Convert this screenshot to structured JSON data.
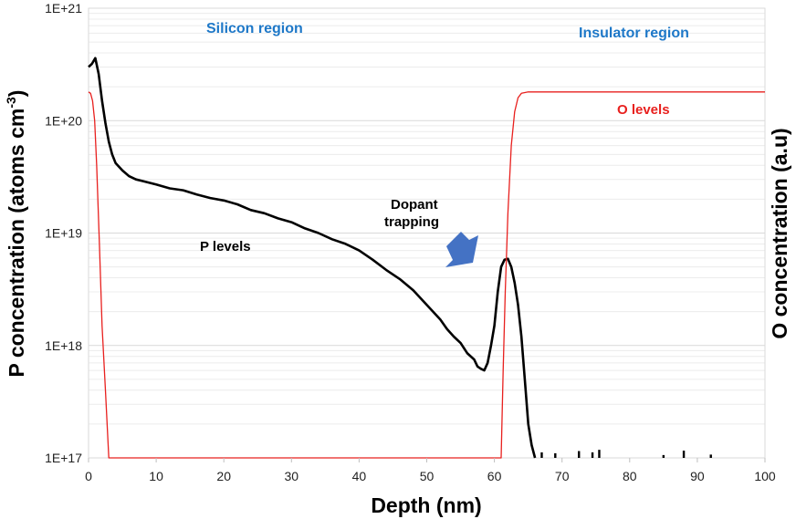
{
  "chart_data": {
    "type": "line",
    "xlabel": "Depth (nm)",
    "ylabel_left": "P concentration (atoms cm-3)",
    "ylabel_left_main": "P concentration (atoms cm",
    "ylabel_left_sup": "-3",
    "ylabel_left_tail": ")",
    "ylabel_right": "O concentration (a.u)",
    "xlim": [
      0,
      100
    ],
    "ylim": [
      1e+17,
      1e+21
    ],
    "yscale": "log",
    "grid": true,
    "x_ticks": [
      0,
      10,
      20,
      30,
      40,
      50,
      60,
      70,
      80,
      90,
      100
    ],
    "x_tick_labels": [
      "0",
      "10",
      "20",
      "30",
      "40",
      "50",
      "60",
      "70",
      "80",
      "90",
      "100"
    ],
    "y_ticks": [
      1e+17,
      1e+18,
      1e+19,
      1e+20,
      1e+21
    ],
    "y_tick_labels": [
      "1E+17",
      "1E+18",
      "1E+19",
      "1E+20",
      "1E+21"
    ],
    "colors": {
      "p_series": "#000000",
      "o_series": "#e8201e",
      "region_label": "#1e78c8",
      "arrow": "#4472c4",
      "grid": "#d9d9d9"
    },
    "series": [
      {
        "name": "P levels",
        "color": "#000000",
        "x": [
          0,
          0.5,
          1,
          1.5,
          2,
          2.5,
          3,
          3.5,
          4,
          5,
          6,
          7,
          8,
          10,
          12,
          14,
          16,
          18,
          20,
          22,
          24,
          26,
          28,
          30,
          32,
          34,
          36,
          38,
          40,
          42,
          44,
          46,
          48,
          50,
          52,
          53,
          54,
          55,
          56,
          57,
          57.5,
          58,
          58.5,
          59,
          59.5,
          60,
          60.5,
          61,
          61.5,
          62,
          62.5,
          63,
          63.5,
          64,
          64.5,
          65,
          65.5,
          66
        ],
        "y": [
          3e+20,
          3.2e+20,
          3.6e+20,
          2.6e+20,
          1.5e+20,
          9.5e+19,
          6.5e+19,
          5e+19,
          4.2e+19,
          3.6e+19,
          3.2e+19,
          3e+19,
          2.9e+19,
          2.7e+19,
          2.5e+19,
          2.4e+19,
          2.2e+19,
          2.05e+19,
          1.95e+19,
          1.8e+19,
          1.6e+19,
          1.5e+19,
          1.35e+19,
          1.25e+19,
          1.1e+19,
          1e+19,
          8.8e+18,
          8e+18,
          7e+18,
          5.8e+18,
          4.7e+18,
          3.9e+18,
          3.1e+18,
          2.3e+18,
          1.7e+18,
          1.4e+18,
          1.2e+18,
          1.05e+18,
          8.5e+17,
          7.5e+17,
          6.5e+17,
          6.2e+17,
          6e+17,
          7e+17,
          1e+18,
          1.5e+18,
          3e+18,
          5e+18,
          5.8e+18,
          5.9e+18,
          5e+18,
          3.6e+18,
          2.3e+18,
          1.2e+18,
          5e+17,
          2e+17,
          1.3e+17,
          1e+17
        ]
      },
      {
        "name": "O levels",
        "color": "#e8201e",
        "x": [
          0,
          0.3,
          0.6,
          0.9,
          1.2,
          1.6,
          2.0,
          2.5,
          3.0,
          61,
          61.3,
          61.6,
          62,
          62.5,
          63,
          63.5,
          64,
          65,
          100
        ],
        "y": [
          1.8e+20,
          1.75e+20,
          1.5e+20,
          1e+20,
          4e+19,
          8e+18,
          1.5e+18,
          4e+17,
          1e+17,
          1e+17,
          6e+17,
          3e+18,
          1.5e+19,
          6e+19,
          1.2e+20,
          1.6e+20,
          1.75e+20,
          1.8e+20,
          1.8e+20
        ]
      }
    ],
    "noise_spikes": [
      {
        "x": 67,
        "y": 1.12e+17
      },
      {
        "x": 69,
        "y": 1.1e+17
      },
      {
        "x": 72.5,
        "y": 1.15e+17
      },
      {
        "x": 74.5,
        "y": 1.12e+17
      },
      {
        "x": 75.5,
        "y": 1.18e+17
      },
      {
        "x": 85,
        "y": 1.06e+17
      },
      {
        "x": 88,
        "y": 1.16e+17
      },
      {
        "x": 92,
        "y": 1.07e+17
      }
    ],
    "annotations": {
      "silicon_region": "Silicon region",
      "insulator_region": "Insulator region",
      "p_levels": "P levels",
      "o_levels": "O levels",
      "dopant_line1": "Dopant",
      "dopant_line2": "trapping"
    }
  }
}
